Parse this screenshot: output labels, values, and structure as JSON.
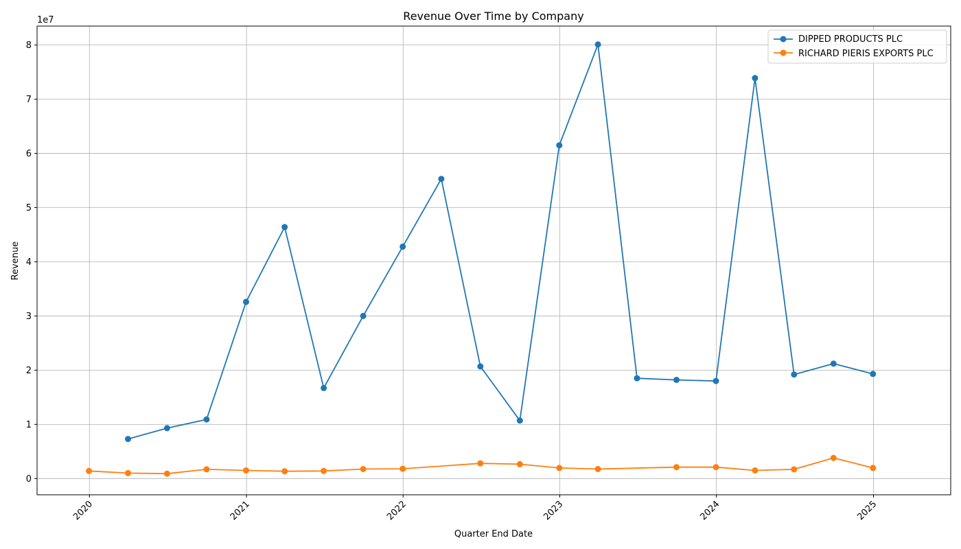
{
  "chart_data": {
    "type": "line",
    "title": "Revenue Over Time by Company",
    "xlabel": "Quarter End Date",
    "ylabel": "Revenue",
    "y_offset_label": "1e7",
    "x_tick_labels": [
      "2020",
      "2021",
      "2022",
      "2023",
      "2024",
      "2025"
    ],
    "y_tick_labels": [
      "0",
      "1",
      "2",
      "3",
      "4",
      "5",
      "6",
      "7",
      "8"
    ],
    "ylim": [
      -3000000,
      83500000
    ],
    "xlim": [
      "2019-09-01",
      "2025-06-30"
    ],
    "grid": true,
    "legend_position": "top-right",
    "series": [
      {
        "name": "DIPPED PRODUCTS PLC",
        "color": "#1f77b4",
        "marker": "circle",
        "points": [
          {
            "x": "2020-03-31",
            "y": 7300000
          },
          {
            "x": "2020-06-30",
            "y": 9300000
          },
          {
            "x": "2020-09-30",
            "y": 10900000
          },
          {
            "x": "2020-12-31",
            "y": 32600000
          },
          {
            "x": "2021-03-31",
            "y": 46400000
          },
          {
            "x": "2021-06-30",
            "y": 16700000
          },
          {
            "x": "2021-09-30",
            "y": 30000000
          },
          {
            "x": "2021-12-31",
            "y": 42800000
          },
          {
            "x": "2022-03-31",
            "y": 55300000
          },
          {
            "x": "2022-06-30",
            "y": 20700000
          },
          {
            "x": "2022-09-30",
            "y": 10700000
          },
          {
            "x": "2022-12-31",
            "y": 61500000
          },
          {
            "x": "2023-03-31",
            "y": 80100000
          },
          {
            "x": "2023-06-30",
            "y": 18500000
          },
          {
            "x": "2023-09-30",
            "y": 18200000
          },
          {
            "x": "2023-12-31",
            "y": 18000000
          },
          {
            "x": "2024-03-31",
            "y": 73900000
          },
          {
            "x": "2024-06-30",
            "y": 19200000
          },
          {
            "x": "2024-09-30",
            "y": 21200000
          },
          {
            "x": "2024-12-31",
            "y": 19300000
          }
        ]
      },
      {
        "name": "RICHARD PIERIS EXPORTS PLC",
        "color": "#ff7f0e",
        "marker": "circle",
        "points": [
          {
            "x": "2019-12-31",
            "y": 1400000
          },
          {
            "x": "2020-03-31",
            "y": 1000000
          },
          {
            "x": "2020-06-30",
            "y": 900000
          },
          {
            "x": "2020-09-30",
            "y": 1700000
          },
          {
            "x": "2020-12-31",
            "y": 1500000
          },
          {
            "x": "2021-03-31",
            "y": 1350000
          },
          {
            "x": "2021-06-30",
            "y": 1400000
          },
          {
            "x": "2021-09-30",
            "y": 1750000
          },
          {
            "x": "2021-12-31",
            "y": 1800000
          },
          {
            "x": "2022-06-30",
            "y": 2800000
          },
          {
            "x": "2022-09-30",
            "y": 2650000
          },
          {
            "x": "2022-12-31",
            "y": 1950000
          },
          {
            "x": "2023-03-31",
            "y": 1750000
          },
          {
            "x": "2023-09-30",
            "y": 2100000
          },
          {
            "x": "2023-12-31",
            "y": 2100000
          },
          {
            "x": "2024-03-31",
            "y": 1500000
          },
          {
            "x": "2024-06-30",
            "y": 1700000
          },
          {
            "x": "2024-09-30",
            "y": 3800000
          },
          {
            "x": "2024-12-31",
            "y": 1950000
          }
        ]
      }
    ]
  }
}
